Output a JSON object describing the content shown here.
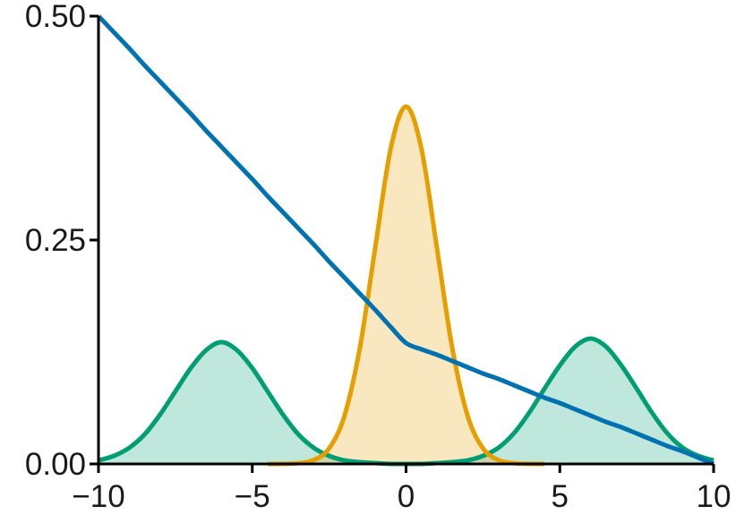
{
  "chart_data": {
    "type": "line",
    "x": [
      -10,
      -9.5,
      -9,
      -8.5,
      -8,
      -7.5,
      -7,
      -6.5,
      -6,
      -5.5,
      -5,
      -4.5,
      -4,
      -3.5,
      -3,
      -2.5,
      -2,
      -1.5,
      -1,
      -0.5,
      0,
      0.5,
      1,
      1.5,
      2,
      2.5,
      3,
      3.5,
      4,
      4.5,
      5,
      5.5,
      6,
      6.5,
      7,
      7.5,
      8,
      8.5,
      9,
      9.5,
      10
    ],
    "series": [
      {
        "color": "#009e73",
        "fill": true,
        "values": [
          0.004,
          0.009,
          0.018,
          0.033,
          0.055,
          0.081,
          0.107,
          0.127,
          0.136,
          0.127,
          0.107,
          0.081,
          0.055,
          0.033,
          0.018,
          0.009,
          0.004,
          0.002,
          0.001,
          0,
          0,
          0,
          0.001,
          0.002,
          0.004,
          0.009,
          0.018,
          0.034,
          0.057,
          0.084,
          0.11,
          0.131,
          0.14,
          0.131,
          0.11,
          0.084,
          0.057,
          0.034,
          0.018,
          0.009,
          0.004
        ]
      },
      {
        "color": "#e69f00",
        "fill": true,
        "values": [
          null,
          null,
          null,
          null,
          null,
          null,
          null,
          null,
          null,
          null,
          null,
          0,
          0.0001,
          0.0009,
          0.0044,
          0.0175,
          0.054,
          0.13,
          0.242,
          0.352,
          0.399,
          0.352,
          0.242,
          0.13,
          0.054,
          0.0175,
          0.0044,
          0.0009,
          0.0001,
          0,
          null,
          null,
          null,
          null,
          null,
          null,
          null,
          null,
          null,
          null,
          null
        ]
      },
      {
        "color": "#0072b2",
        "fill": false,
        "values": [
          0.5,
          0.482,
          0.464,
          0.445,
          0.427,
          0.409,
          0.391,
          0.372,
          0.354,
          0.336,
          0.318,
          0.299,
          0.281,
          0.263,
          0.245,
          0.226,
          0.208,
          0.19,
          0.172,
          0.153,
          0.135,
          0.128,
          0.122,
          0.115,
          0.108,
          0.101,
          0.095,
          0.088,
          0.081,
          0.074,
          0.068,
          0.061,
          0.054,
          0.047,
          0.041,
          0.034,
          0.027,
          0.02,
          0.014,
          0.007,
          0
        ]
      }
    ],
    "xlim": [
      -10,
      10
    ],
    "ylim": [
      0,
      0.5
    ],
    "xticks": [
      {
        "value": -10,
        "label": "−10"
      },
      {
        "value": -5,
        "label": "−5"
      },
      0,
      5,
      10
    ],
    "yticks": [
      {
        "value": 0,
        "label": "0.00"
      },
      {
        "value": 0.25,
        "label": "0.25"
      },
      {
        "value": 0.5,
        "label": "0.50"
      }
    ]
  }
}
